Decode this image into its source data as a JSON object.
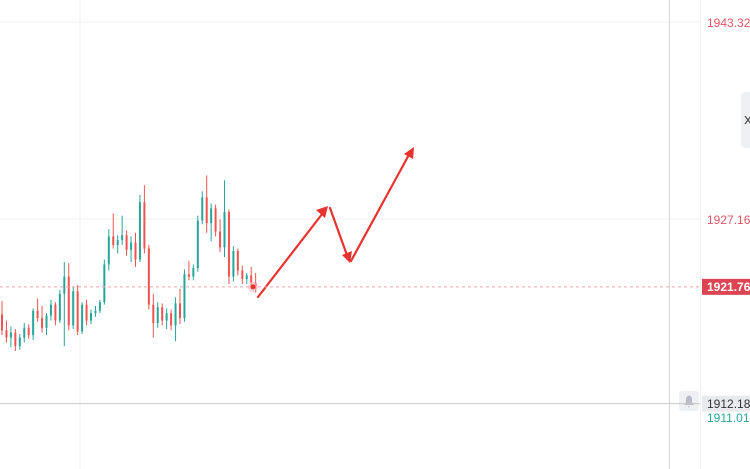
{
  "chart_data": {
    "type": "candlestick",
    "up_color": "#26a69a",
    "down_color": "#ef5350",
    "ylim": [
      1906.82,
      1945.29
    ],
    "yticks": [
      1943.32,
      1927.16
    ],
    "grid": true,
    "last_price": 1921.76,
    "crosshair_price": 1912.18,
    "low_price": 1911.01,
    "open": [
      1919.5,
      1918.2,
      1917.6,
      1918.0,
      1916.9,
      1917.6,
      1918.4,
      1917.8,
      1919.8,
      1919.2,
      1918.4,
      1919.4,
      1920.3,
      1919.0,
      1921.2,
      1922.6,
      1918.6,
      1921.4,
      1918.1,
      1920.3,
      1919.0,
      1919.6,
      1919.8,
      1920.5,
      1923.6,
      1925.9,
      1925.2,
      1925.6,
      1926.0,
      1924.8,
      1925.4,
      1924.0,
      1928.7,
      1924.9,
      1920.3,
      1918.8,
      1920.1,
      1919.0,
      1919.6,
      1918.6,
      1920.4,
      1919.2,
      1922.8,
      1922.6,
      1923.3,
      1927.2,
      1929.1,
      1927.0,
      1928.2,
      1926.3,
      1925.0,
      1927.9,
      1922.6,
      1924.7,
      1923.1,
      1922.4,
      1922.7,
      1922.1
    ],
    "high": [
      1920.6,
      1919.0,
      1918.5,
      1918.3,
      1917.9,
      1918.8,
      1918.7,
      1920.0,
      1920.8,
      1920.2,
      1919.6,
      1920.7,
      1920.5,
      1921.5,
      1923.8,
      1923.7,
      1921.8,
      1921.9,
      1920.5,
      1920.7,
      1919.9,
      1920.2,
      1920.7,
      1924.0,
      1926.5,
      1927.8,
      1926.0,
      1927.6,
      1926.4,
      1925.9,
      1926.2,
      1929.3,
      1930.1,
      1925.2,
      1921.2,
      1920.5,
      1920.4,
      1920.0,
      1919.9,
      1920.9,
      1921.6,
      1923.2,
      1923.9,
      1923.6,
      1927.6,
      1929.6,
      1930.9,
      1928.6,
      1928.5,
      1927.3,
      1930.5,
      1928.1,
      1925.1,
      1924.9,
      1923.5,
      1922.9,
      1923.4,
      1922.9
    ],
    "low": [
      1917.8,
      1917.2,
      1916.8,
      1916.5,
      1916.6,
      1917.2,
      1917.5,
      1917.4,
      1918.9,
      1918.0,
      1917.8,
      1919.0,
      1918.6,
      1918.8,
      1916.9,
      1918.2,
      1918.3,
      1917.8,
      1917.9,
      1918.6,
      1918.7,
      1919.3,
      1919.6,
      1920.3,
      1923.1,
      1924.9,
      1924.5,
      1925.2,
      1924.3,
      1923.8,
      1923.4,
      1923.8,
      1924.5,
      1919.9,
      1917.6,
      1918.4,
      1918.6,
      1918.3,
      1918.2,
      1917.3,
      1918.7,
      1918.9,
      1922.3,
      1922.3,
      1923.0,
      1926.9,
      1926.2,
      1925.5,
      1925.9,
      1924.6,
      1924.2,
      1922.0,
      1922.2,
      1922.7,
      1922.0,
      1922.0,
      1921.9,
      1921.3
    ],
    "close": [
      1918.2,
      1917.6,
      1918.0,
      1916.9,
      1917.6,
      1918.4,
      1917.8,
      1919.8,
      1919.2,
      1918.4,
      1919.4,
      1920.3,
      1919.0,
      1921.2,
      1922.6,
      1918.6,
      1921.4,
      1918.1,
      1920.3,
      1919.0,
      1919.6,
      1919.8,
      1920.5,
      1923.6,
      1925.9,
      1925.2,
      1925.6,
      1926.0,
      1924.8,
      1925.4,
      1924.0,
      1928.7,
      1924.9,
      1920.3,
      1918.8,
      1920.1,
      1919.0,
      1919.6,
      1918.6,
      1920.4,
      1919.2,
      1922.8,
      1922.6,
      1923.3,
      1927.2,
      1929.1,
      1927.0,
      1928.2,
      1926.3,
      1925.0,
      1927.9,
      1922.6,
      1924.7,
      1923.1,
      1922.4,
      1922.7,
      1922.1,
      1921.76
    ]
  }
}
